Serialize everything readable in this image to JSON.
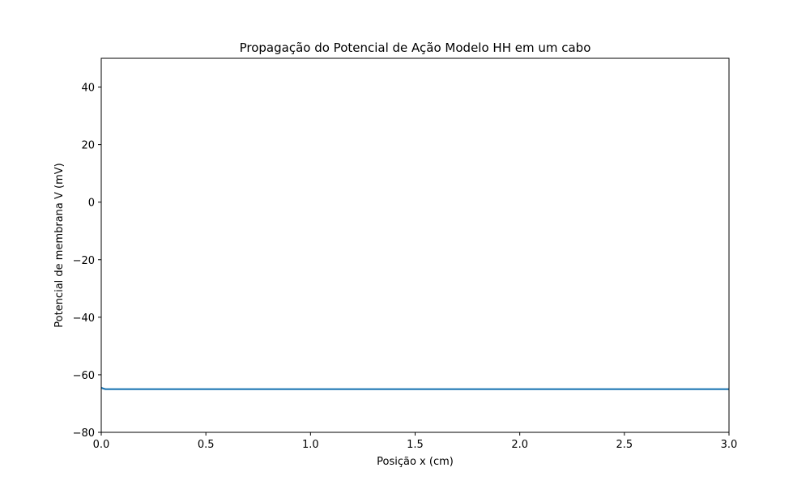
{
  "chart_data": {
    "type": "line",
    "title": "Propagação do Potencial de Ação Modelo HH em um cabo",
    "xlabel": "Posição x (cm)",
    "ylabel": "Potencial de membrana V (mV)",
    "xlim": [
      0.0,
      3.0
    ],
    "ylim": [
      -80,
      50
    ],
    "x_ticks": [
      0.0,
      0.5,
      1.0,
      1.5,
      2.0,
      2.5,
      3.0
    ],
    "x_tick_labels": [
      "0.0",
      "0.5",
      "1.0",
      "1.5",
      "2.0",
      "2.5",
      "3.0"
    ],
    "y_ticks": [
      -80,
      -60,
      -40,
      -20,
      0,
      20,
      40
    ],
    "y_tick_labels": [
      "−80",
      "−60",
      "−40",
      "−20",
      "0",
      "20",
      "40"
    ],
    "grid": false,
    "legend": "none",
    "series": [
      {
        "color": "#1f77b4",
        "x": [
          0.0,
          0.01,
          0.02,
          0.03,
          0.05,
          0.1,
          0.5,
          1.0,
          1.5,
          2.0,
          2.5,
          3.0
        ],
        "values": [
          -64.5,
          -64.8,
          -65.0,
          -65.0,
          -65.0,
          -65.0,
          -65.0,
          -65.0,
          -65.0,
          -65.0,
          -65.0,
          -65.0
        ]
      }
    ]
  }
}
